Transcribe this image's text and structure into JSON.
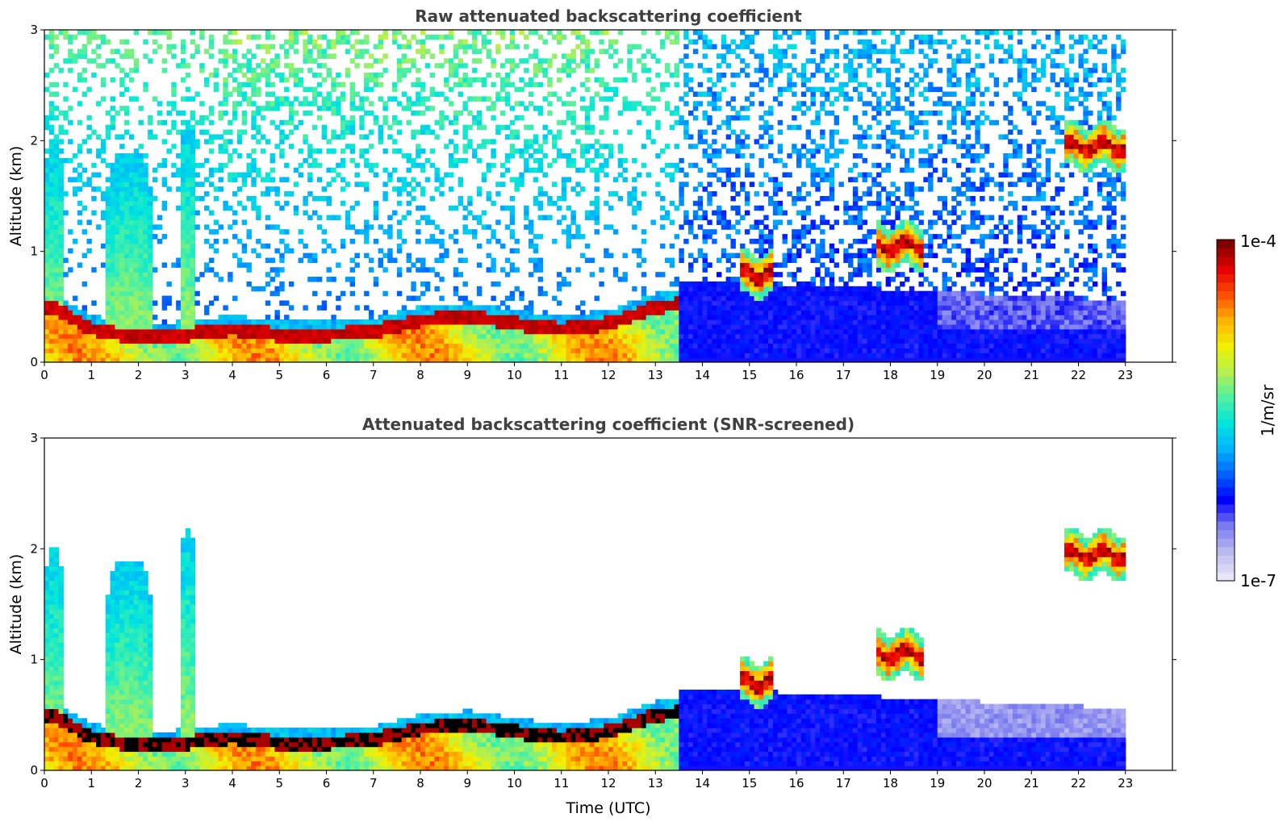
{
  "chart_data": [
    {
      "type": "heatmap",
      "title": "Raw attenuated backscattering coefficient",
      "xlabel": "",
      "ylabel": "Altitude (km)",
      "xlim": [
        0,
        24
      ],
      "ylim": [
        0,
        3
      ],
      "x_ticks": [
        0,
        1,
        2,
        3,
        4,
        5,
        6,
        7,
        8,
        9,
        10,
        11,
        12,
        13,
        14,
        15,
        16,
        17,
        18,
        19,
        20,
        21,
        22,
        23
      ],
      "y_ticks": [
        0,
        1,
        2,
        3
      ],
      "data_end_time_utc": 23,
      "features": {
        "boundary_layer_top_km": [
          {
            "t": 0.2,
            "z": 0.5
          },
          {
            "t": 1,
            "z": 0.3
          },
          {
            "t": 2,
            "z": 0.22
          },
          {
            "t": 3,
            "z": 0.25
          },
          {
            "t": 4,
            "z": 0.3
          },
          {
            "t": 5,
            "z": 0.25
          },
          {
            "t": 6,
            "z": 0.25
          },
          {
            "t": 7,
            "z": 0.28
          },
          {
            "t": 8,
            "z": 0.38
          },
          {
            "t": 9,
            "z": 0.42
          },
          {
            "t": 10,
            "z": 0.35
          },
          {
            "t": 11,
            "z": 0.3
          },
          {
            "t": 12,
            "z": 0.35
          },
          {
            "t": 13,
            "z": 0.5
          },
          {
            "t": 14,
            "z": 0.55
          },
          {
            "t": 15,
            "z": 0.8
          }
        ],
        "elevated_cloud_layers": [
          {
            "t_start": 14.8,
            "t_end": 15.5,
            "z_km": 0.8
          },
          {
            "t_start": 17.7,
            "t_end": 18.7,
            "z_km": 1.05
          },
          {
            "t_start": 21.7,
            "t_end": 23.0,
            "z_km": 1.95
          }
        ],
        "tall_plumes": [
          {
            "t_start": 0.0,
            "t_end": 0.4,
            "top_km": 2.0
          },
          {
            "t_start": 1.3,
            "t_end": 2.3,
            "top_km": 1.9
          },
          {
            "t_start": 2.9,
            "t_end": 3.2,
            "top_km": 2.2
          }
        ]
      }
    },
    {
      "type": "heatmap",
      "title": "Attenuated backscattering coefficient (SNR-screened)",
      "xlabel": "Time (UTC)",
      "ylabel": "Altitude (km)",
      "xlim": [
        0,
        24
      ],
      "ylim": [
        0,
        3
      ],
      "x_ticks": [
        0,
        1,
        2,
        3,
        4,
        5,
        6,
        7,
        8,
        9,
        10,
        11,
        12,
        13,
        14,
        15,
        16,
        17,
        18,
        19,
        20,
        21,
        22,
        23
      ],
      "y_ticks": [
        0,
        1,
        2,
        3
      ],
      "data_end_time_utc": 23
    }
  ],
  "colorbar": {
    "label": "1/m/sr",
    "max_label": "1e-4",
    "min_label": "1e-7",
    "colors": [
      "#e6e6f8",
      "#b9b9f0",
      "#7a7af0",
      "#0000ff",
      "#0060ff",
      "#00b4ff",
      "#00e6dc",
      "#50f0a0",
      "#b4f050",
      "#f0f000",
      "#ffb400",
      "#ff5000",
      "#e60000",
      "#800000"
    ]
  }
}
